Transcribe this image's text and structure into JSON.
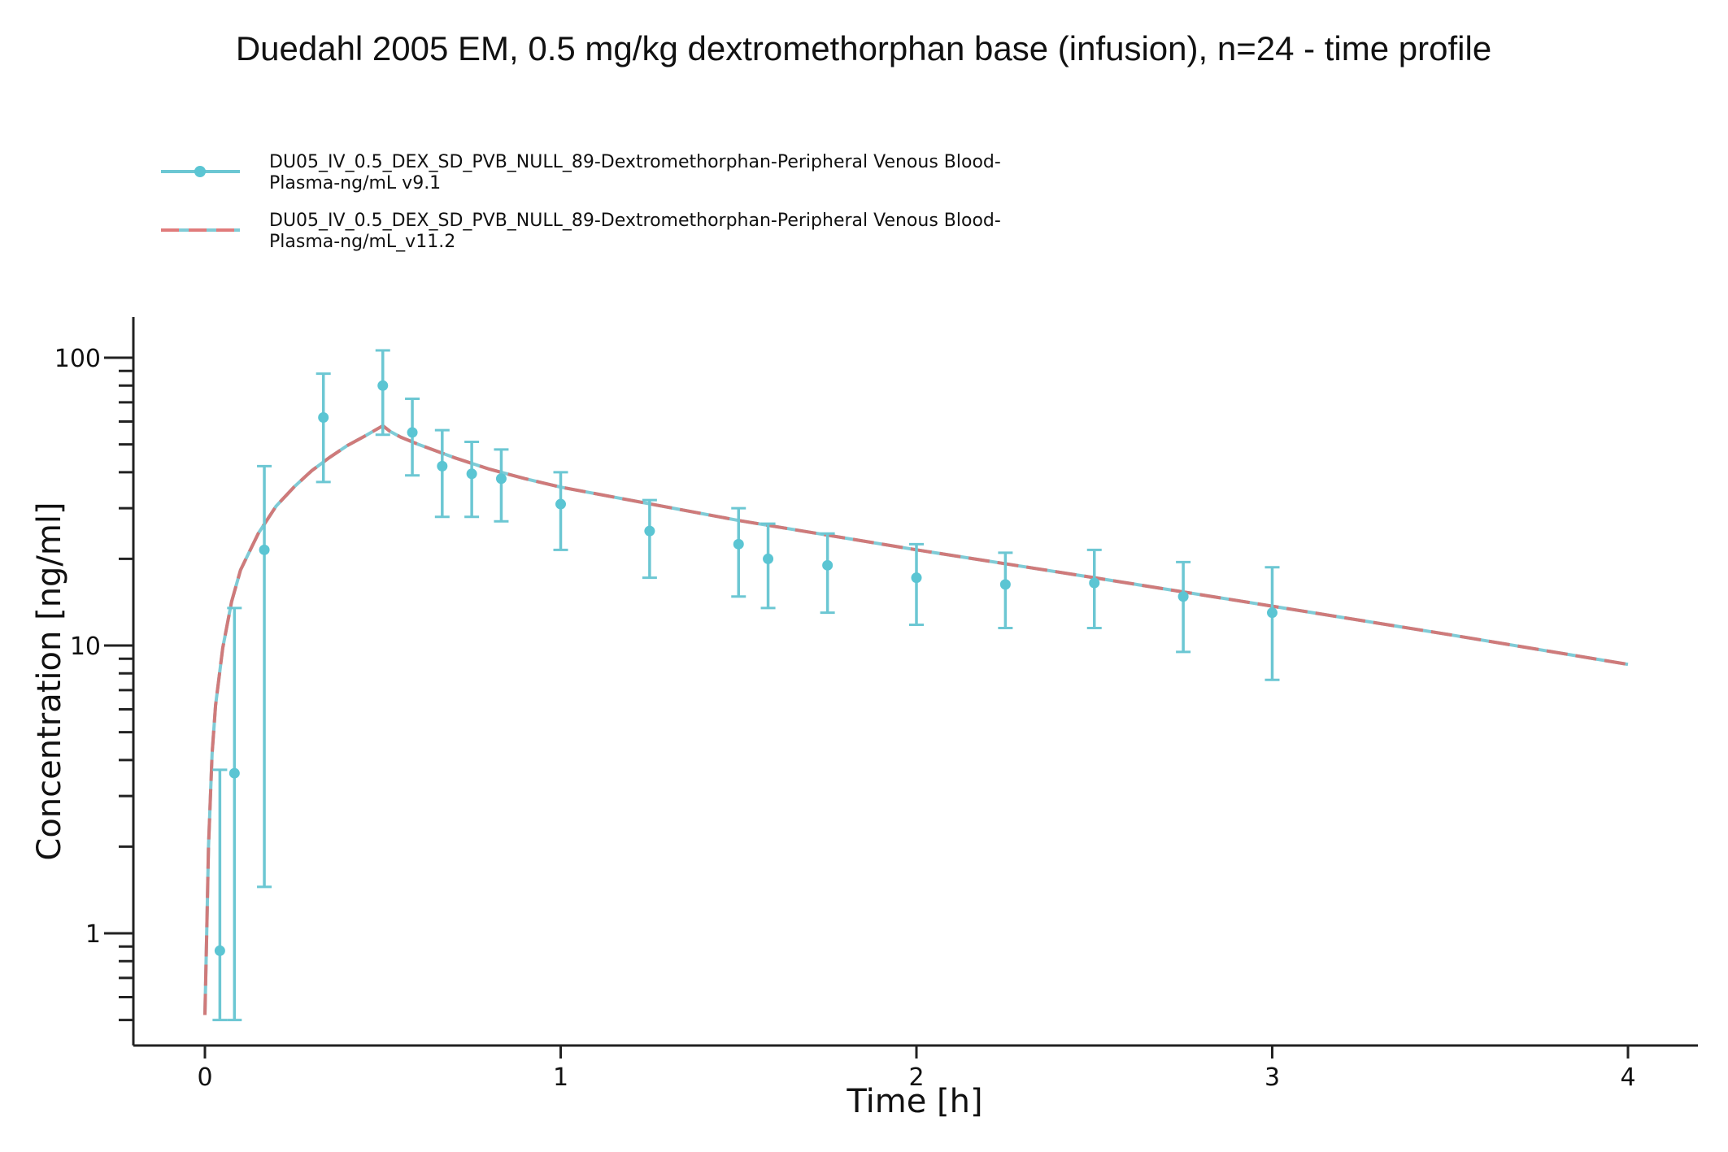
{
  "chart_data": {
    "type": "line",
    "title": "Duedahl 2005 EM, 0.5 mg/kg dextromethorphan base (infusion), n=24 - time profile",
    "xlabel": "Time [h]",
    "ylabel": "Concentration [ng/ml]",
    "xlim": [
      -0.2,
      4.2
    ],
    "ylim": [
      0.43,
      140
    ],
    "yscale": "log",
    "x_ticks": [
      0,
      1,
      2,
      3,
      4
    ],
    "x_tick_labels": [
      "0",
      "1",
      "2",
      "3",
      "4"
    ],
    "y_ticks": [
      1,
      10,
      100
    ],
    "y_tick_labels": [
      "1",
      "10",
      "100"
    ],
    "grid": false,
    "legend_position": "top-left",
    "series": [
      {
        "name": "DU05_IV_0.5_DEX_SD_PVB_NULL_89-Dextromethorphan-Peripheral Venous Blood-Plasma-ng/mL v9.1",
        "legend_lines": [
          "DU05_IV_0.5_DEX_SD_PVB_NULL_89-Dextromethorphan-Peripheral Venous Blood-",
          "Plasma-ng/mL v9.1"
        ],
        "color": "#5bc5d3",
        "style": "solid",
        "observed": [
          {
            "x": 0.042,
            "y": 0.87,
            "lo": 0.5,
            "hi": 3.7
          },
          {
            "x": 0.083,
            "y": 3.6,
            "lo": 0.5,
            "hi": 13.5
          },
          {
            "x": 0.167,
            "y": 21.5,
            "lo": 1.45,
            "hi": 42
          },
          {
            "x": 0.333,
            "y": 62,
            "lo": 37,
            "hi": 88
          },
          {
            "x": 0.5,
            "y": 80,
            "lo": 54,
            "hi": 106
          },
          {
            "x": 0.583,
            "y": 55,
            "lo": 39,
            "hi": 72
          },
          {
            "x": 0.667,
            "y": 42,
            "lo": 28,
            "hi": 56
          },
          {
            "x": 0.75,
            "y": 39.5,
            "lo": 28,
            "hi": 51
          },
          {
            "x": 0.833,
            "y": 38,
            "lo": 27,
            "hi": 48
          },
          {
            "x": 1.0,
            "y": 31,
            "lo": 21.5,
            "hi": 40
          },
          {
            "x": 1.25,
            "y": 25,
            "lo": 17.2,
            "hi": 32
          },
          {
            "x": 1.5,
            "y": 22.5,
            "lo": 14.8,
            "hi": 30
          },
          {
            "x": 1.583,
            "y": 20,
            "lo": 13.5,
            "hi": 26.5
          },
          {
            "x": 1.75,
            "y": 19,
            "lo": 13,
            "hi": 24.5
          },
          {
            "x": 2.0,
            "y": 17.2,
            "lo": 11.8,
            "hi": 22.5
          },
          {
            "x": 2.25,
            "y": 16.3,
            "lo": 11.5,
            "hi": 21
          },
          {
            "x": 2.5,
            "y": 16.5,
            "lo": 11.5,
            "hi": 21.5
          },
          {
            "x": 2.75,
            "y": 14.8,
            "lo": 9.5,
            "hi": 19.5
          },
          {
            "x": 3.0,
            "y": 13,
            "lo": 7.6,
            "hi": 18.7
          }
        ],
        "x": [
          0.0,
          0.005,
          0.01,
          0.02,
          0.03,
          0.05,
          0.075,
          0.1,
          0.15,
          0.2,
          0.25,
          0.3,
          0.35,
          0.4,
          0.45,
          0.5,
          0.52,
          0.55,
          0.6,
          0.7,
          0.8,
          0.9,
          1.0,
          1.5,
          2.0,
          2.5,
          3.0,
          3.5,
          4.0
        ],
        "y": [
          0.52,
          1.0,
          2.0,
          4.2,
          6.2,
          9.8,
          14.2,
          18.3,
          24.5,
          30.5,
          35.5,
          40.5,
          45.0,
          49.5,
          53.5,
          58.0,
          55.5,
          53.0,
          50.0,
          45.0,
          41.0,
          38.0,
          35.5,
          27.2,
          21.5,
          17.2,
          13.7,
          10.9,
          8.6
        ]
      },
      {
        "name": "DU05_IV_0.5_DEX_SD_PVB_NULL_89-Dextromethorphan-Peripheral Venous Blood-Plasma-ng/mL_v11.2",
        "legend_lines": [
          "DU05_IV_0.5_DEX_SD_PVB_NULL_89-Dextromethorphan-Peripheral Venous Blood-",
          "Plasma-ng/mL_v11.2"
        ],
        "color": "#e07b7b",
        "style": "dashed",
        "x": [
          0.0,
          0.005,
          0.01,
          0.02,
          0.03,
          0.05,
          0.075,
          0.1,
          0.15,
          0.2,
          0.25,
          0.3,
          0.35,
          0.4,
          0.45,
          0.5,
          0.52,
          0.55,
          0.6,
          0.7,
          0.8,
          0.9,
          1.0,
          1.5,
          2.0,
          2.5,
          3.0,
          3.5,
          4.0
        ],
        "y": [
          0.52,
          1.0,
          2.0,
          4.2,
          6.2,
          9.8,
          14.2,
          18.3,
          24.5,
          30.5,
          35.5,
          40.5,
          45.0,
          49.5,
          53.5,
          58.0,
          55.5,
          53.0,
          50.0,
          45.0,
          41.0,
          38.0,
          35.5,
          27.2,
          21.5,
          17.2,
          13.7,
          10.9,
          8.6
        ]
      }
    ]
  }
}
